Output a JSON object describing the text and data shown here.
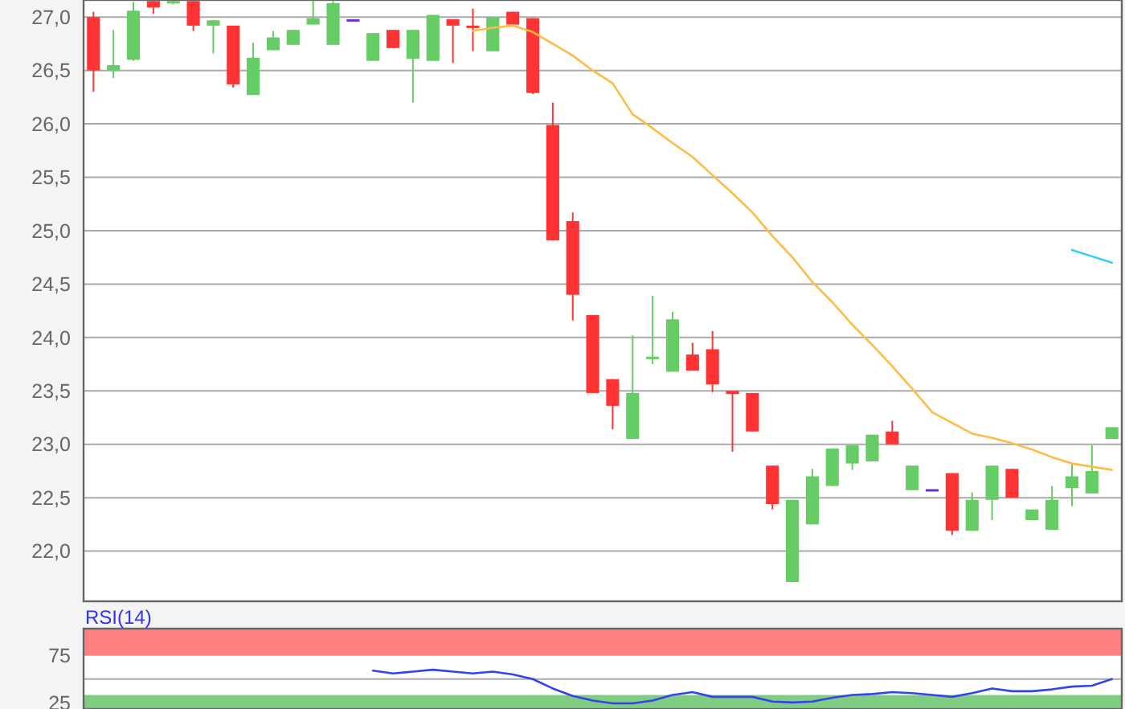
{
  "chart_data": [
    {
      "type": "candlestick",
      "categories": [
        null,
        null,
        null,
        null,
        null,
        null,
        null,
        null,
        null,
        null,
        null,
        null,
        null,
        null,
        null,
        null,
        null,
        null,
        null,
        null,
        null,
        null,
        null,
        null,
        null,
        null,
        null,
        null,
        null,
        null,
        null,
        null,
        null,
        null,
        null,
        null,
        null,
        null,
        null,
        null,
        null,
        null,
        null,
        null,
        null,
        null,
        null,
        null,
        null,
        null,
        null,
        null
      ],
      "ohlc": [
        [
          27.0,
          27.05,
          26.3,
          26.5
        ],
        [
          26.5,
          26.88,
          26.43,
          26.55
        ],
        [
          26.6,
          27.14,
          26.59,
          27.06
        ],
        [
          27.15,
          27.15,
          27.03,
          27.09
        ],
        [
          27.14,
          27.15,
          27.12,
          27.15
        ],
        [
          27.15,
          27.15,
          26.87,
          26.92
        ],
        [
          26.92,
          26.97,
          26.66,
          26.97
        ],
        [
          26.92,
          26.92,
          26.34,
          26.37
        ],
        [
          26.27,
          26.76,
          26.27,
          26.62
        ],
        [
          26.69,
          26.87,
          26.69,
          26.81
        ],
        [
          26.74,
          26.88,
          26.74,
          26.88
        ],
        [
          26.93,
          27.15,
          26.93,
          26.99
        ],
        [
          26.74,
          27.15,
          26.74,
          27.13
        ],
        [
          26.98,
          26.98,
          26.98,
          26.98
        ],
        [
          26.59,
          26.85,
          26.59,
          26.85
        ],
        [
          26.88,
          26.88,
          26.71,
          26.71
        ],
        [
          26.61,
          26.88,
          26.2,
          26.88
        ],
        [
          26.59,
          27.02,
          26.59,
          27.02
        ],
        [
          26.98,
          26.98,
          26.57,
          26.92
        ],
        [
          26.92,
          27.08,
          26.68,
          26.9
        ],
        [
          26.68,
          27.0,
          26.68,
          27.0
        ],
        [
          27.05,
          27.05,
          26.93,
          26.93
        ],
        [
          26.99,
          26.99,
          26.28,
          26.29
        ],
        [
          25.99,
          26.2,
          24.91,
          24.91
        ],
        [
          25.09,
          25.17,
          24.16,
          24.4
        ],
        [
          24.21,
          24.21,
          23.48,
          23.48
        ],
        [
          23.61,
          23.61,
          23.14,
          23.36
        ],
        [
          23.05,
          24.02,
          23.05,
          23.48
        ],
        [
          23.8,
          24.39,
          23.75,
          23.82
        ],
        [
          23.68,
          24.24,
          23.68,
          24.17
        ],
        [
          23.84,
          23.95,
          23.69,
          23.69
        ],
        [
          23.89,
          24.06,
          23.49,
          23.56
        ],
        [
          23.5,
          23.5,
          22.93,
          23.47
        ],
        [
          23.48,
          23.48,
          23.12,
          23.12
        ],
        [
          22.8,
          22.8,
          22.39,
          22.44
        ],
        [
          21.71,
          22.48,
          21.71,
          22.48
        ],
        [
          22.25,
          22.77,
          22.25,
          22.7
        ],
        [
          22.61,
          22.96,
          22.61,
          22.96
        ],
        [
          22.82,
          22.99,
          22.76,
          22.99
        ],
        [
          22.84,
          23.09,
          22.84,
          23.09
        ],
        [
          23.12,
          23.22,
          23.0,
          23.0
        ],
        [
          22.57,
          22.8,
          22.57,
          22.8
        ],
        [
          22.58,
          22.58,
          22.58,
          22.58
        ],
        [
          22.73,
          22.73,
          22.15,
          22.19
        ],
        [
          22.19,
          22.55,
          22.19,
          22.48
        ],
        [
          22.48,
          22.8,
          22.29,
          22.8
        ],
        [
          22.77,
          22.77,
          22.5,
          22.5
        ],
        [
          22.29,
          22.39,
          22.29,
          22.39
        ],
        [
          22.2,
          22.61,
          22.2,
          22.48
        ],
        [
          22.59,
          22.82,
          22.42,
          22.7
        ],
        [
          22.54,
          22.99,
          22.54,
          22.75
        ],
        [
          23.05,
          23.16,
          23.05,
          23.16
        ]
      ],
      "colors": [
        "#ff3333",
        "#66cc66",
        "#66cc66",
        "#ff3333",
        "#66cc66",
        "#ff3333",
        "#66cc66",
        "#ff3333",
        "#66cc66",
        "#66cc66",
        "#66cc66",
        "#66cc66",
        "#66cc66",
        "#6633cc",
        "#66cc66",
        "#ff3333",
        "#66cc66",
        "#66cc66",
        "#ff3333",
        "#ff3333",
        "#66cc66",
        "#ff3333",
        "#ff3333",
        "#ff3333",
        "#ff3333",
        "#ff3333",
        "#ff3333",
        "#66cc66",
        "#66cc66",
        "#66cc66",
        "#ff3333",
        "#ff3333",
        "#ff3333",
        "#ff3333",
        "#ff3333",
        "#66cc66",
        "#66cc66",
        "#66cc66",
        "#66cc66",
        "#66cc66",
        "#ff3333",
        "#66cc66",
        "#6633cc",
        "#ff3333",
        "#66cc66",
        "#66cc66",
        "#ff3333",
        "#66cc66",
        "#66cc66",
        "#66cc66",
        "#66cc66",
        "#66cc66"
      ],
      "series": [
        {
          "type": "line",
          "color": "#ffbb44",
          "values": [
            null,
            null,
            null,
            null,
            null,
            null,
            null,
            null,
            null,
            null,
            null,
            null,
            null,
            null,
            null,
            null,
            null,
            null,
            null,
            26.87,
            26.9,
            26.92,
            26.86,
            26.75,
            26.64,
            26.5,
            26.38,
            26.09,
            25.96,
            25.82,
            25.69,
            25.52,
            25.35,
            25.17,
            24.95,
            24.75,
            24.52,
            24.33,
            24.12,
            23.93,
            23.73,
            23.52,
            23.3,
            23.2,
            23.1,
            23.06,
            23.01,
            22.95,
            22.88,
            22.82,
            22.79,
            22.76
          ]
        },
        {
          "type": "line",
          "color": "#33ccff",
          "values": [
            null,
            null,
            null,
            null,
            null,
            null,
            null,
            null,
            null,
            null,
            null,
            null,
            null,
            null,
            null,
            null,
            null,
            null,
            null,
            null,
            null,
            null,
            null,
            null,
            null,
            null,
            null,
            null,
            null,
            null,
            null,
            null,
            null,
            null,
            null,
            null,
            null,
            null,
            null,
            null,
            null,
            null,
            null,
            null,
            null,
            null,
            null,
            null,
            null,
            24.82,
            24.76,
            24.7
          ]
        }
      ],
      "ylim": [
        21.53,
        27.16
      ],
      "yticks": [
        {
          "value": 22,
          "label": "22,0"
        },
        {
          "value": 22.5,
          "label": "22,5"
        },
        {
          "value": 23,
          "label": "23,0"
        },
        {
          "value": 23.5,
          "label": "23,5"
        },
        {
          "value": 24,
          "label": "24,0"
        },
        {
          "value": 24.5,
          "label": "24,5"
        },
        {
          "value": 25,
          "label": "25,0"
        },
        {
          "value": 25.5,
          "label": "25,5"
        },
        {
          "value": 26,
          "label": "26,0"
        },
        {
          "value": 26.5,
          "label": "26,5"
        },
        {
          "value": 27,
          "label": "27,0"
        }
      ],
      "grid": "y",
      "tick_labels": "y"
    },
    {
      "type": "line",
      "title": "RSI(14)",
      "categories": [
        null,
        null,
        null,
        null,
        null,
        null,
        null,
        null,
        null,
        null,
        null,
        null,
        null,
        null,
        null,
        null,
        null,
        null,
        null,
        null,
        null,
        null,
        null,
        null,
        null,
        null,
        null,
        null,
        null,
        null,
        null,
        null,
        null,
        null,
        null,
        null,
        null,
        null,
        null,
        null,
        null,
        null,
        null,
        null,
        null,
        null,
        null,
        null,
        null,
        null,
        null,
        null
      ],
      "series": [
        {
          "color": "#3344ee",
          "values": [
            null,
            null,
            null,
            null,
            null,
            null,
            null,
            null,
            null,
            null,
            null,
            null,
            null,
            null,
            59,
            56,
            58,
            60,
            58,
            56,
            58,
            55,
            50,
            40,
            32,
            27,
            24,
            24,
            27,
            33,
            36,
            31,
            31,
            31,
            26,
            25,
            26,
            30,
            33,
            34,
            36,
            35,
            33,
            31,
            35,
            40,
            37,
            37,
            39,
            42,
            43,
            50
          ]
        }
      ],
      "ylim": [
        18,
        104
      ],
      "yticks": [
        25,
        75
      ],
      "bands": [
        {
          "axis": "y",
          "from": 75,
          "to": 104,
          "color": "#ff8080"
        },
        {
          "axis": "y",
          "from": 18,
          "to": 33,
          "color": "#80cc80"
        }
      ],
      "ref_lines": [
        {
          "axis": "y",
          "value": 50,
          "color": "#aaaaaa"
        }
      ],
      "tick_labels": "y"
    }
  ]
}
